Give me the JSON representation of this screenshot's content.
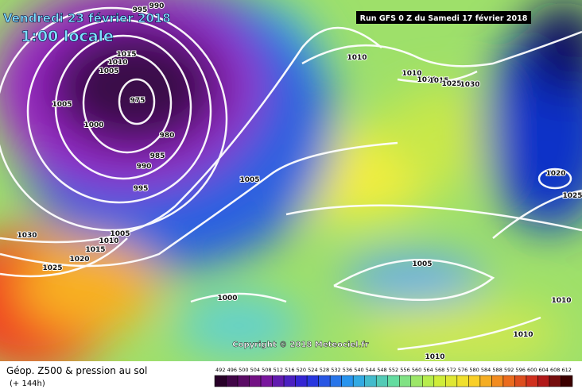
{
  "header": {
    "date": "Vendredi 23 février 2018",
    "time": "1:00 locale",
    "run": "Run GFS 0 Z du Samedi 17 février 2018"
  },
  "isobar_labels": [
    "995",
    "990",
    "1015",
    "1010",
    "1005",
    "1005",
    "975",
    "1000",
    "980",
    "985",
    "990",
    "995",
    "1010",
    "1010",
    "1010",
    "1015",
    "1025",
    "1030",
    "1005",
    "1020",
    "1025",
    "1030",
    "1005",
    "1010",
    "1015",
    "1020",
    "1025",
    "1005",
    "1000",
    "1010",
    "1010",
    "1010"
  ],
  "copyright": "Copyright © 2018 Meteociel.fr",
  "legend": {
    "title": "Géop. Z500 & pression au sol",
    "subtitle": "(+ 144h)",
    "scale": [
      492,
      496,
      500,
      504,
      508,
      512,
      516,
      520,
      524,
      528,
      532,
      536,
      540,
      544,
      548,
      552,
      556,
      560,
      564,
      568,
      572,
      576,
      580,
      584,
      588,
      592,
      596,
      600,
      604,
      608,
      612
    ]
  }
}
